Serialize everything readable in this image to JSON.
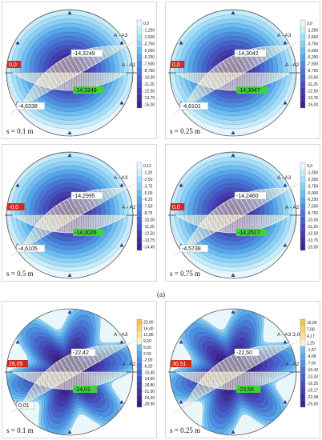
{
  "caption": "(a)",
  "legend_colors": [
    "#e6f6fb",
    "#c7ecfa",
    "#a6def8",
    "#8ccff4",
    "#6fbcef",
    "#58a6e8",
    "#4d8edf",
    "#4a78d4",
    "#4863c8",
    "#464fbb",
    "#443eac",
    "#41309c",
    "#3c248a",
    "#341a78"
  ],
  "panels": [
    {
      "s_label": "s = 0.1 m",
      "labels": {
        "a3": "A - A3",
        "a2": "A - A2",
        "red": "0,0",
        "green": "-14,3249",
        "max": "-14,3249",
        "left": "-4,6338"
      },
      "legend_values": [
        "0,0",
        "-1,250",
        "-2,500",
        "-3,750",
        "-5,000",
        "-6,250",
        "-7,500",
        "-8,750",
        "-10,00",
        "-11,25",
        "-12,50",
        "-13,75",
        "-15,00"
      ]
    },
    {
      "s_label": "s = 0.25 m",
      "labels": {
        "a3": "A - A3",
        "a2": "A - A2",
        "red": "0,0",
        "green": "-14,3047",
        "max": "-14,3042",
        "left": "-4,6101"
      },
      "legend_values": [
        "0,0",
        "-1,250",
        "-2,500",
        "-3,750",
        "-5,000",
        "-6,250",
        "-7,500",
        "-8,750",
        "-10,00",
        "-11,25",
        "-12,50",
        "-13,75",
        "-15,00"
      ]
    },
    {
      "s_label": "s = 0.5 m",
      "labels": {
        "a3": "A - A3",
        "a2": "A - A2",
        "red": "-0,0",
        "green": "-14,3026",
        "max": "-14,2995",
        "left": "-4,6105"
      },
      "legend_values": [
        "0,12",
        "-1,25",
        "-2,50",
        "-3,75",
        "-5,00",
        "-6,25",
        "-7,50",
        "-8,75",
        "-10,00",
        "-11,25",
        "-12,50",
        "-13,75",
        "-14,45"
      ]
    },
    {
      "s_label": "s = 0.75 m",
      "labels": {
        "a3": "A - A3",
        "a2": "A - A2",
        "red": "0,0",
        "green": "-14,2517",
        "max": "-14,2460",
        "left": "-4,5738"
      },
      "legend_values": [
        "0,0",
        "-1,250",
        "-2,500",
        "-3,750",
        "-5,000",
        "-6,250",
        "-7,500",
        "-8,750",
        "-10,00",
        "-11,25",
        "-12,50",
        "-13,75",
        "-15,00"
      ]
    },
    {
      "s_label": "s = 0.1 m",
      "labels": {
        "a3": "A - A3",
        "a2": "A - A2",
        "red": "28,05",
        "green": "-24,01",
        "max": "-22,42",
        "left": "0,01"
      },
      "legend_values": [
        "20,00",
        "16,40",
        "12,80",
        "9,20",
        "5,60",
        "2,00",
        "-2,00",
        "-6,20",
        "-10,40",
        "-14,60",
        "-18,80",
        "-21,00",
        "-24,20",
        "-28,90"
      ]
    },
    {
      "s_label": "s = 0.25 m",
      "labels": {
        "a3": "A - A3  3,00",
        "a2": "A - A2",
        "red": "30,51",
        "green": "-23,56",
        "max": "-22,50",
        "left": ""
      },
      "legend_values": [
        "10,00",
        "7,08",
        "4,17",
        "1,25",
        "-1,67",
        "-4,58",
        "-7,50",
        "-10,42",
        "-13,33",
        "-16,25",
        "-19,17",
        "-22,08",
        "-25,00"
      ]
    }
  ]
}
